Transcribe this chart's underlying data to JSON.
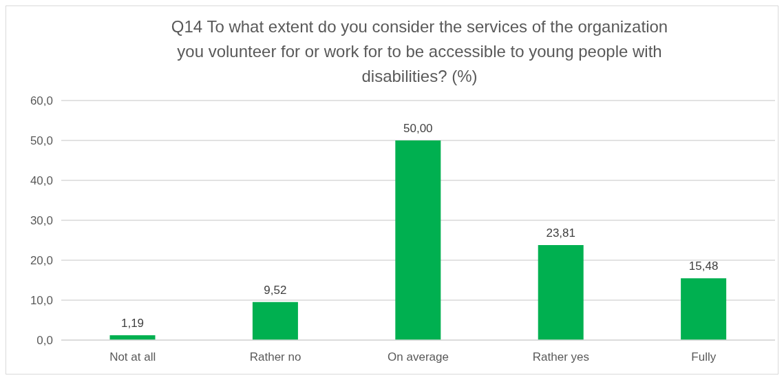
{
  "chart_data": {
    "type": "bar",
    "title": "Q14 To what extent do you consider the services of the organization you volunteer for or work for to be accessible to young people with disabilities? (%)",
    "categories": [
      "Not at all",
      "Rather no",
      "On average",
      "Rather yes",
      "Fully"
    ],
    "values": [
      1.19,
      9.52,
      50.0,
      23.81,
      15.48
    ],
    "value_labels": [
      "1,19",
      "9,52",
      "50,00",
      "23,81",
      "15,48"
    ],
    "color": "#00b050",
    "ylim": [
      0,
      60
    ],
    "yticks": [
      {
        "value": 0,
        "label": "0,0"
      },
      {
        "value": 10,
        "label": "10,0"
      },
      {
        "value": 20,
        "label": "20,0"
      },
      {
        "value": 30,
        "label": "30,0"
      },
      {
        "value": 40,
        "label": "40,0"
      },
      {
        "value": 50,
        "label": "50,0"
      },
      {
        "value": 60,
        "label": "60,0"
      }
    ],
    "grid": "y"
  }
}
